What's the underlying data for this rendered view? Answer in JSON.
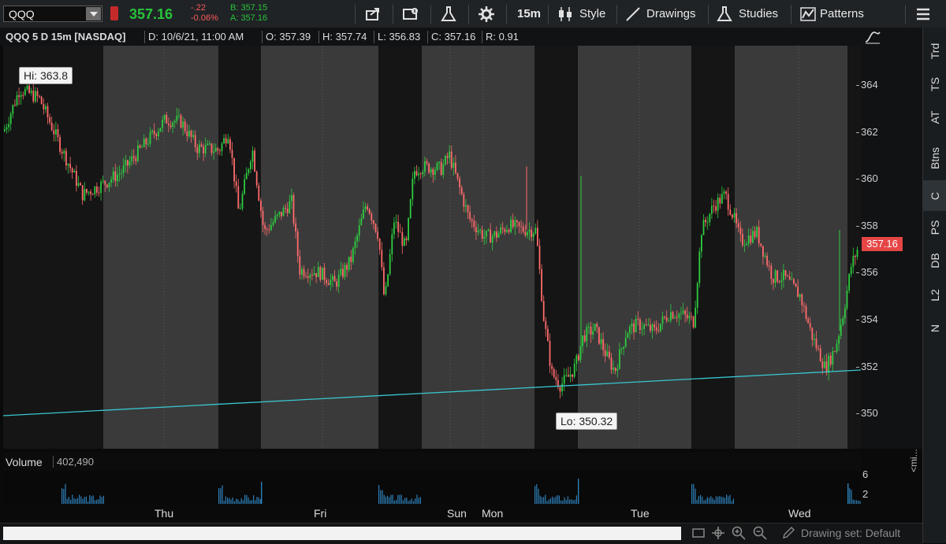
{
  "toolbar": {
    "symbol": "QQQ",
    "last_price": "357.16",
    "net_change": "-.22",
    "pct_change": "-0.06%",
    "bid": "B: 357.15",
    "ask": "A: 357.16",
    "timeframe": "15m",
    "style_label": "Style",
    "drawings_label": "Drawings",
    "studies_label": "Studies",
    "patterns_label": "Patterns"
  },
  "info": {
    "title": "QQQ 5 D 15m [NASDAQ]",
    "date": "D: 10/6/21, 11:00 AM",
    "open": "O: 357.39",
    "high": "H: 357.74",
    "low": "L: 356.83",
    "close": "C: 357.16",
    "range": "R: 0.91"
  },
  "price_axis": {
    "ticks": [
      "364",
      "362",
      "360",
      "358",
      "356",
      "354",
      "352",
      "350"
    ],
    "current_price": "357.16"
  },
  "chart": {
    "hi_label": "Hi: 363.8",
    "lo_label": "Lo: 350.32",
    "up_color": "#2ecc40",
    "down_color": "#ff6b6b",
    "trendline_color": "#39c6d1"
  },
  "volume": {
    "title": "Volume",
    "value": "402,490",
    "axis_ticks": [
      "6",
      "2"
    ],
    "color": "#2d7fb8"
  },
  "time_axis": [
    "Thu",
    "Fri",
    "Sun",
    "Mon",
    "Tue",
    "Wed"
  ],
  "right_tabs": [
    "Trd",
    "TS",
    "AT",
    "Btns",
    "C",
    "PS",
    "DB",
    "L2",
    "N"
  ],
  "bottom": {
    "drawing_set": "Drawing set: Default",
    "mini_label": "<mi..."
  }
}
